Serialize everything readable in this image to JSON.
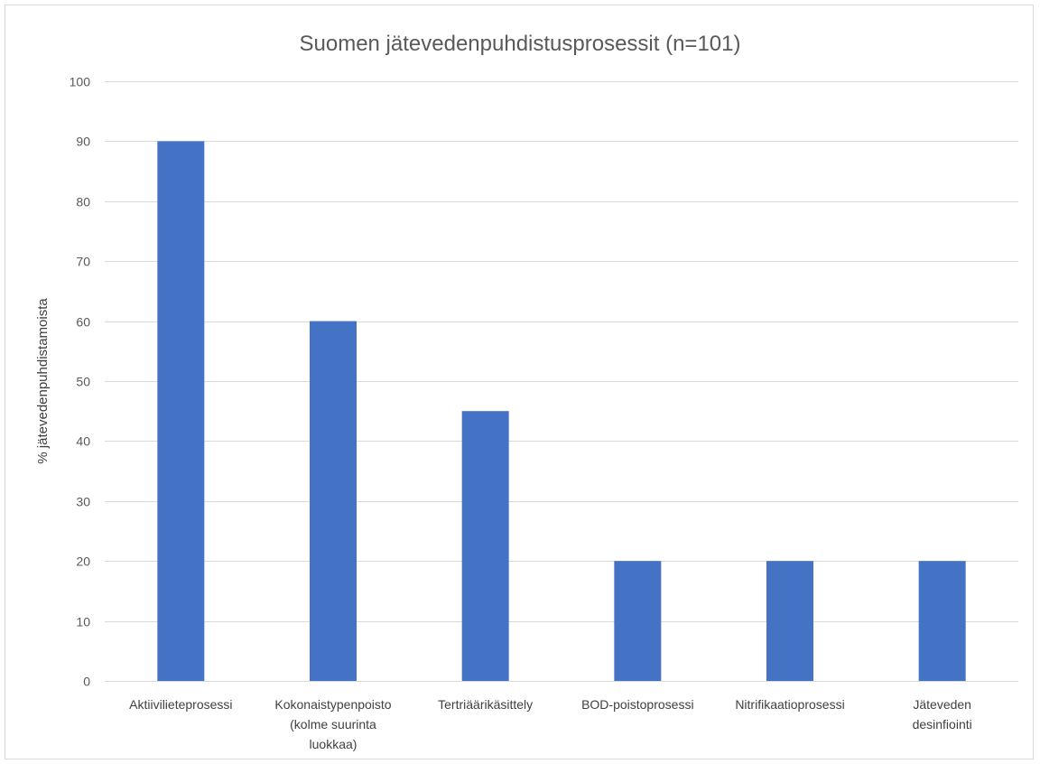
{
  "chart_data": {
    "type": "bar",
    "title": "Suomen jätevedenpuhdistusprosessit (n=101)",
    "xlabel": "",
    "ylabel": "% jätevedenpuhdistamoista",
    "ylim": [
      0,
      100
    ],
    "yticks": [
      0,
      10,
      20,
      30,
      40,
      50,
      60,
      70,
      80,
      90,
      100
    ],
    "grid": true,
    "categories": [
      [
        "Aktiivilieteprosessi"
      ],
      [
        "Kokonaistypenpoisto",
        "(kolme suurinta",
        "luokkaa)"
      ],
      [
        "Tertriäärikäsittely"
      ],
      [
        "BOD-poistoprosessi"
      ],
      [
        "Nitrifikaatioprosessi"
      ],
      [
        "Jäteveden",
        "desinfiointi"
      ]
    ],
    "values": [
      90,
      60,
      45,
      20,
      20,
      20
    ],
    "bar_color": "#4472c4"
  }
}
